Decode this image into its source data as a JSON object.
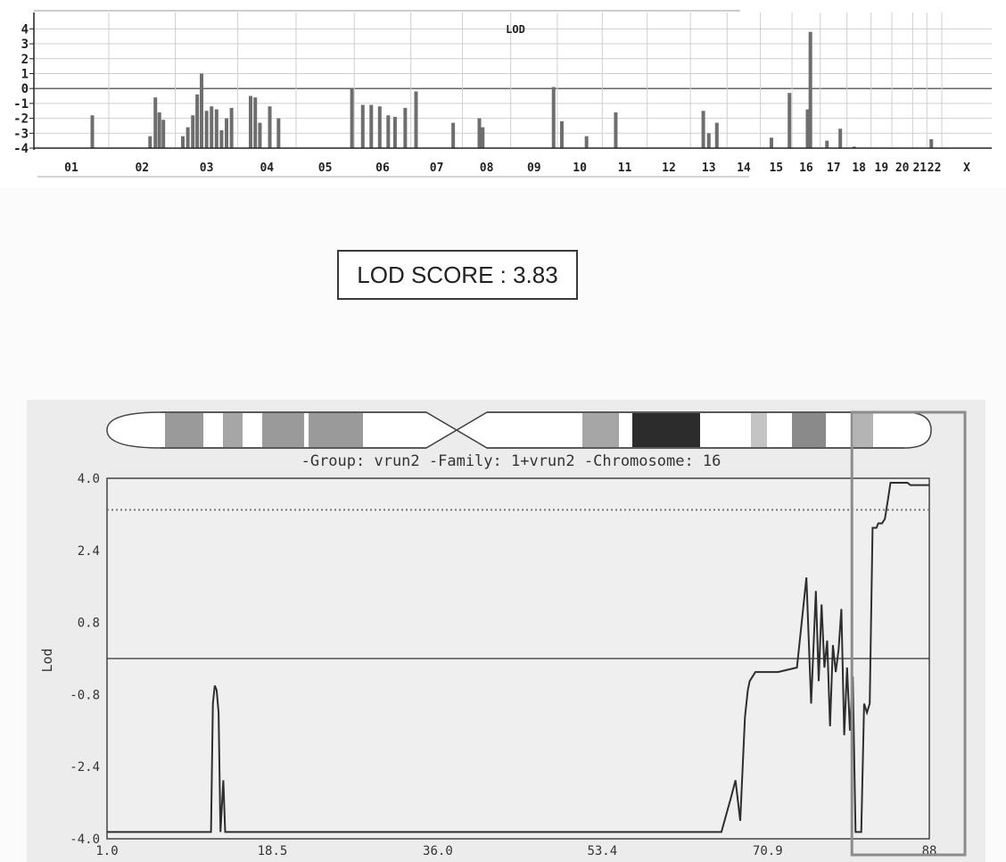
{
  "chart_data": [
    {
      "type": "bar",
      "title": "LOD",
      "ylim": [
        -4,
        4.5
      ],
      "yticks": [
        "4",
        "3",
        "2",
        "1",
        "0",
        "-1",
        "-2",
        "-3",
        "-4"
      ],
      "categories": [
        "01",
        "02",
        "03",
        "04",
        "05",
        "06",
        "07",
        "08",
        "09",
        "10",
        "11",
        "12",
        "13",
        "14",
        "15",
        "16",
        "17",
        "18",
        "19",
        "20",
        "21",
        "22",
        "X"
      ],
      "bars": [
        {
          "chr": "01",
          "pos": 0.78,
          "lod": -1.8
        },
        {
          "chr": "02",
          "pos": 0.62,
          "lod": -3.2
        },
        {
          "chr": "02",
          "pos": 0.7,
          "lod": -0.6
        },
        {
          "chr": "02",
          "pos": 0.76,
          "lod": -1.6
        },
        {
          "chr": "02",
          "pos": 0.82,
          "lod": -2.1
        },
        {
          "chr": "03",
          "pos": 0.12,
          "lod": -3.2
        },
        {
          "chr": "03",
          "pos": 0.2,
          "lod": -2.6
        },
        {
          "chr": "03",
          "pos": 0.28,
          "lod": -1.8
        },
        {
          "chr": "03",
          "pos": 0.35,
          "lod": -0.4
        },
        {
          "chr": "03",
          "pos": 0.42,
          "lod": 1.0
        },
        {
          "chr": "03",
          "pos": 0.5,
          "lod": -1.5
        },
        {
          "chr": "03",
          "pos": 0.58,
          "lod": -1.2
        },
        {
          "chr": "03",
          "pos": 0.66,
          "lod": -1.4
        },
        {
          "chr": "03",
          "pos": 0.74,
          "lod": -2.8
        },
        {
          "chr": "03",
          "pos": 0.82,
          "lod": -2.0
        },
        {
          "chr": "03",
          "pos": 0.9,
          "lod": -1.3
        },
        {
          "chr": "04",
          "pos": 0.22,
          "lod": -0.5
        },
        {
          "chr": "04",
          "pos": 0.3,
          "lod": -0.6
        },
        {
          "chr": "04",
          "pos": 0.38,
          "lod": -2.3
        },
        {
          "chr": "04",
          "pos": 0.55,
          "lod": -1.2
        },
        {
          "chr": "04",
          "pos": 0.7,
          "lod": -2.0
        },
        {
          "chr": "05",
          "pos": 0.96,
          "lod": 0.0
        },
        {
          "chr": "06",
          "pos": 0.15,
          "lod": -1.1
        },
        {
          "chr": "06",
          "pos": 0.3,
          "lod": -1.1
        },
        {
          "chr": "06",
          "pos": 0.45,
          "lod": -1.2
        },
        {
          "chr": "06",
          "pos": 0.6,
          "lod": -1.8
        },
        {
          "chr": "06",
          "pos": 0.72,
          "lod": -1.9
        },
        {
          "chr": "06",
          "pos": 0.9,
          "lod": -1.3
        },
        {
          "chr": "07",
          "pos": 0.1,
          "lod": -0.2
        },
        {
          "chr": "07",
          "pos": 0.82,
          "lod": -2.3
        },
        {
          "chr": "08",
          "pos": 0.35,
          "lod": -2.0
        },
        {
          "chr": "08",
          "pos": 0.42,
          "lod": -2.6
        },
        {
          "chr": "09",
          "pos": 0.92,
          "lod": 0.1
        },
        {
          "chr": "10",
          "pos": 0.1,
          "lod": -2.2
        },
        {
          "chr": "10",
          "pos": 0.65,
          "lod": -3.2
        },
        {
          "chr": "11",
          "pos": 0.3,
          "lod": -1.6
        },
        {
          "chr": "13",
          "pos": 0.35,
          "lod": -1.5
        },
        {
          "chr": "13",
          "pos": 0.5,
          "lod": -3.0
        },
        {
          "chr": "13",
          "pos": 0.72,
          "lod": -2.3
        },
        {
          "chr": "15",
          "pos": 0.35,
          "lod": -3.3
        },
        {
          "chr": "15",
          "pos": 0.92,
          "lod": -0.3
        },
        {
          "chr": "16",
          "pos": 0.55,
          "lod": -1.4
        },
        {
          "chr": "16",
          "pos": 0.65,
          "lod": 3.8
        },
        {
          "chr": "17",
          "pos": 0.25,
          "lod": -3.5
        },
        {
          "chr": "17",
          "pos": 0.75,
          "lod": -2.7
        },
        {
          "chr": "18",
          "pos": 0.3,
          "lod": -3.9
        },
        {
          "chr": "22",
          "pos": 0.3,
          "lod": -3.4
        }
      ]
    },
    {
      "type": "line",
      "title": "-Group: vrun2 -Family: 1+vrun2  -Chromosome: 16",
      "ylabel": "Lod",
      "xlim": [
        1.0,
        88.0
      ],
      "ylim": [
        -4.0,
        4.0
      ],
      "xticks": [
        "1.0",
        "18.5",
        "36.0",
        "53.4",
        "70.9",
        "88"
      ],
      "yticks": [
        "4.0",
        "2.4",
        "0.8",
        "-0.8",
        "-2.4",
        "-4.0"
      ],
      "threshold": 3.3,
      "reference": 0.0,
      "x": [
        1.0,
        12.0,
        12.2,
        12.4,
        12.6,
        12.8,
        13.0,
        13.3,
        13.5,
        13.7,
        13.9,
        14.2,
        14.5,
        66.0,
        67.0,
        67.5,
        68.0,
        68.5,
        68.8,
        69.0,
        69.3,
        69.6,
        70.0,
        71.0,
        72.0,
        74.0,
        75.0,
        75.5,
        76.0,
        76.3,
        76.6,
        76.9,
        77.2,
        77.5,
        77.8,
        78.1,
        78.4,
        78.7,
        79.0,
        79.3,
        79.6,
        79.9,
        80.2,
        80.5,
        80.8,
        81.1,
        81.4,
        81.7,
        82.0,
        82.4,
        82.6,
        83.0,
        83.3,
        83.6,
        83.9,
        84.2,
        84.5,
        84.8,
        85.1,
        85.4,
        85.7,
        86.0,
        86.3,
        86.6,
        87.0,
        88.0
      ],
      "y": [
        -3.85,
        -3.85,
        -1.0,
        -0.6,
        -0.7,
        -1.2,
        -3.85,
        -2.7,
        -3.85,
        -3.85,
        -3.85,
        -3.85,
        -3.85,
        -3.85,
        -3.1,
        -2.7,
        -3.6,
        -1.3,
        -0.7,
        -0.5,
        -0.4,
        -0.3,
        -0.3,
        -0.3,
        -0.3,
        -0.2,
        1.8,
        -1.0,
        1.5,
        -0.5,
        1.2,
        -0.2,
        0.4,
        -1.5,
        0.3,
        -0.3,
        0.2,
        1.1,
        -1.7,
        -0.2,
        -1.6,
        -0.4,
        -3.85,
        -3.85,
        -3.85,
        -1.0,
        -1.2,
        -1.0,
        2.9,
        2.9,
        3.0,
        3.0,
        3.1,
        3.5,
        3.9,
        3.9,
        3.9,
        3.9,
        3.9,
        3.9,
        3.9,
        3.85,
        3.85,
        3.85,
        3.85,
        3.85
      ],
      "highlight_region": [
        80.0,
        88.0
      ]
    }
  ],
  "score": {
    "text": "LOD SCORE : 3.83"
  }
}
